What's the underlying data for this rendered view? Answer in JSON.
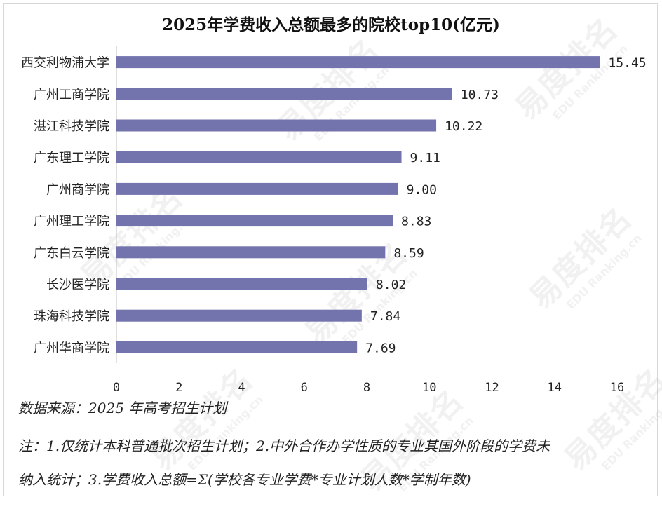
{
  "watermark": {
    "text": "易度排名",
    "sub": "EDU Ranking.cn"
  },
  "chart_data": {
    "type": "bar",
    "orientation": "horizontal",
    "title": "2025年学费收入总额最多的院校top10(亿元)",
    "categories": [
      "西交利物浦大学",
      "广州工商学院",
      "湛江科技学院",
      "广东理工学院",
      "广州商学院",
      "广州理工学院",
      "广东白云学院",
      "长沙医学院",
      "珠海科技学院",
      "广州华商学院"
    ],
    "values": [
      15.45,
      10.73,
      10.22,
      9.11,
      9.0,
      8.83,
      8.59,
      8.02,
      7.84,
      7.69
    ],
    "value_labels": [
      "15.45",
      "10.73",
      "10.22",
      "9.11",
      "9.00",
      "8.83",
      "8.59",
      "8.02",
      "7.84",
      "7.69"
    ],
    "xlim": [
      0,
      16
    ],
    "xticks": [
      "0",
      "2",
      "4",
      "6",
      "8",
      "10",
      "12",
      "14",
      "16"
    ],
    "bar_color": "#7373ae",
    "grid": false,
    "legend": "none"
  },
  "notes": {
    "source": "数据来源：2025 年高考招生计划",
    "note1": "注：1.仅统计本科普通批次招生计划；2.中外合作办学性质的专业其国外阶段的学费未",
    "note2": "纳入统计；3.学费收入总额=Σ(学校各专业学费*专业计划人数*学制年数)"
  }
}
